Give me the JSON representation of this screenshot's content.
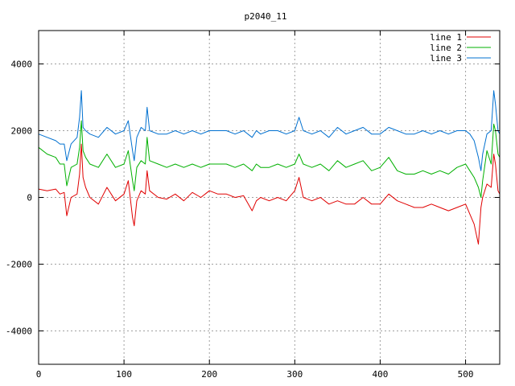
{
  "chart_data": {
    "type": "line",
    "title": "p2040_11",
    "xlabel": "",
    "ylabel": "",
    "xlim": [
      0,
      540
    ],
    "ylim": [
      -5000,
      5000
    ],
    "x_ticks": [
      0,
      100,
      200,
      300,
      400,
      500
    ],
    "y_ticks": [
      -4000,
      -2000,
      0,
      2000,
      4000
    ],
    "grid": true,
    "legend_position": "top-right",
    "series": [
      {
        "name": "line 1",
        "color": "#e00000",
        "x": [
          0,
          10,
          20,
          25,
          30,
          33,
          38,
          45,
          48,
          50,
          52,
          55,
          60,
          70,
          80,
          90,
          100,
          105,
          110,
          112,
          115,
          120,
          125,
          127,
          130,
          140,
          150,
          160,
          170,
          180,
          190,
          200,
          210,
          220,
          230,
          240,
          250,
          255,
          260,
          270,
          280,
          290,
          300,
          305,
          310,
          320,
          330,
          340,
          350,
          360,
          370,
          380,
          390,
          400,
          410,
          420,
          430,
          440,
          450,
          460,
          470,
          480,
          490,
          500,
          505,
          510,
          515,
          518,
          520,
          525,
          530,
          533,
          535,
          538,
          540
        ],
        "y": [
          250,
          200,
          250,
          100,
          150,
          -550,
          0,
          100,
          700,
          1600,
          600,
          300,
          0,
          -200,
          300,
          -100,
          100,
          500,
          -600,
          -850,
          -100,
          200,
          100,
          800,
          200,
          0,
          -50,
          100,
          -100,
          150,
          0,
          200,
          100,
          100,
          0,
          50,
          -400,
          -100,
          0,
          -100,
          0,
          -100,
          200,
          600,
          0,
          -100,
          0,
          -200,
          -100,
          -200,
          -200,
          0,
          -200,
          -200,
          100,
          -100,
          -200,
          -300,
          -300,
          -200,
          -300,
          -400,
          -300,
          -200,
          -500,
          -800,
          -1400,
          -300,
          0,
          400,
          300,
          1300,
          1000,
          200,
          100
        ]
      },
      {
        "name": "line 2",
        "color": "#00b000",
        "x": [
          0,
          10,
          20,
          25,
          30,
          33,
          38,
          45,
          48,
          50,
          52,
          55,
          60,
          70,
          80,
          90,
          100,
          105,
          110,
          112,
          115,
          120,
          125,
          127,
          130,
          140,
          150,
          160,
          170,
          180,
          190,
          200,
          210,
          220,
          230,
          240,
          250,
          255,
          260,
          270,
          280,
          290,
          300,
          305,
          310,
          320,
          330,
          340,
          350,
          360,
          370,
          380,
          390,
          400,
          410,
          420,
          430,
          440,
          450,
          460,
          470,
          480,
          490,
          500,
          505,
          510,
          515,
          518,
          520,
          525,
          530,
          533,
          535,
          538,
          540
        ],
        "y": [
          1500,
          1300,
          1200,
          1000,
          1000,
          350,
          900,
          1000,
          1500,
          2300,
          1400,
          1200,
          1000,
          900,
          1300,
          900,
          1000,
          1400,
          500,
          200,
          900,
          1100,
          1000,
          1800,
          1100,
          1000,
          900,
          1000,
          900,
          1000,
          900,
          1000,
          1000,
          1000,
          900,
          1000,
          800,
          1000,
          900,
          900,
          1000,
          900,
          1000,
          1300,
          1000,
          900,
          1000,
          800,
          1100,
          900,
          1000,
          1100,
          800,
          900,
          1200,
          800,
          700,
          700,
          800,
          700,
          800,
          700,
          900,
          1000,
          800,
          600,
          300,
          0,
          500,
          1400,
          1000,
          2200,
          2000,
          1300,
          1200
        ]
      },
      {
        "name": "line 3",
        "color": "#0070d0",
        "x": [
          0,
          10,
          20,
          25,
          30,
          33,
          38,
          45,
          48,
          50,
          52,
          55,
          60,
          70,
          80,
          90,
          100,
          105,
          110,
          112,
          115,
          120,
          125,
          127,
          130,
          140,
          150,
          160,
          170,
          180,
          190,
          200,
          210,
          220,
          230,
          240,
          250,
          255,
          260,
          270,
          280,
          290,
          300,
          305,
          310,
          320,
          330,
          340,
          350,
          360,
          370,
          380,
          390,
          400,
          410,
          420,
          430,
          440,
          450,
          460,
          470,
          480,
          490,
          500,
          505,
          510,
          515,
          518,
          520,
          525,
          530,
          533,
          535,
          538,
          540
        ],
        "y": [
          1900,
          1800,
          1700,
          1600,
          1600,
          1100,
          1600,
          1800,
          2400,
          3200,
          2100,
          2000,
          1900,
          1800,
          2100,
          1900,
          2000,
          2300,
          1400,
          1100,
          1800,
          2100,
          2000,
          2700,
          2000,
          1900,
          1900,
          2000,
          1900,
          2000,
          1900,
          2000,
          2000,
          2000,
          1900,
          2000,
          1800,
          2000,
          1900,
          2000,
          2000,
          1900,
          2000,
          2400,
          2000,
          1900,
          2000,
          1800,
          2100,
          1900,
          2000,
          2100,
          1900,
          1900,
          2100,
          2000,
          1900,
          1900,
          2000,
          1900,
          2000,
          1900,
          2000,
          2000,
          1900,
          1700,
          1200,
          800,
          1300,
          1900,
          2000,
          3200,
          2800,
          2000,
          1900
        ]
      }
    ]
  }
}
